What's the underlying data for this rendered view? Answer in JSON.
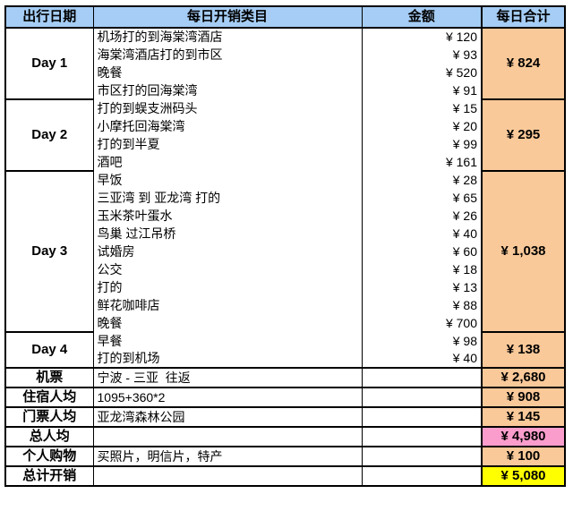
{
  "colors": {
    "header_bg": "#A5CDF5",
    "orange": "#FAC999",
    "pink": "#FB9DCC",
    "yellow": "#FFFF00",
    "border": "#000000",
    "text": "#000000"
  },
  "table": {
    "columns": [
      "出行日期",
      "每日开销类目",
      "金额",
      "每日合计"
    ],
    "day_groups": [
      {
        "day": "Day 1",
        "total": "¥ 824",
        "items": [
          {
            "desc": "机场打的到海棠湾酒店",
            "amount": "¥ 120"
          },
          {
            "desc": "海棠湾酒店打的到市区",
            "amount": "¥ 93"
          },
          {
            "desc": "晚餐",
            "amount": "¥ 520"
          },
          {
            "desc": "市区打的回海棠湾",
            "amount": "¥ 91"
          }
        ]
      },
      {
        "day": "Day 2",
        "total": "¥ 295",
        "items": [
          {
            "desc": "打的到蜈支洲码头",
            "amount": "¥ 15"
          },
          {
            "desc": "小摩托回海棠湾",
            "amount": "¥ 20"
          },
          {
            "desc": "打的到半夏",
            "amount": "¥ 99"
          },
          {
            "desc": "酒吧",
            "amount": "¥ 161"
          }
        ]
      },
      {
        "day": "Day 3",
        "total": "¥ 1,038",
        "items": [
          {
            "desc": "早饭",
            "amount": "¥ 28"
          },
          {
            "desc": "三亚湾 到 亚龙湾 打的",
            "amount": "¥ 65"
          },
          {
            "desc": "玉米茶叶蛋水",
            "amount": "¥ 26"
          },
          {
            "desc": "鸟巢 过江吊桥",
            "amount": "¥ 40"
          },
          {
            "desc": "试婚房",
            "amount": "¥ 60"
          },
          {
            "desc": "公交",
            "amount": "¥ 18"
          },
          {
            "desc": "打的",
            "amount": "¥ 13"
          },
          {
            "desc": "鲜花咖啡店",
            "amount": "¥ 88"
          },
          {
            "desc": "晚餐",
            "amount": "¥ 700"
          }
        ]
      },
      {
        "day": "Day 4",
        "total": "¥ 138",
        "items": [
          {
            "desc": "早餐",
            "amount": "¥ 98"
          },
          {
            "desc": "打的到机场",
            "amount": "¥ 40"
          }
        ]
      }
    ],
    "summary_rows": [
      {
        "label": "机票",
        "desc": "宁波 - 三亚  往返",
        "total": "¥ 2,680",
        "label_style": "plain",
        "total_style": "orange"
      },
      {
        "label": "住宿人均",
        "desc": "1095+360*2",
        "total": "¥ 908",
        "label_style": "plain",
        "total_style": "orange"
      },
      {
        "label": "门票人均",
        "desc": "亚龙湾森林公园",
        "total": "¥ 145",
        "label_style": "plain",
        "total_style": "orange"
      },
      {
        "label": "总人均",
        "desc": "",
        "total": "¥ 4,980",
        "label_style": "pink",
        "total_style": "pink"
      },
      {
        "label": "个人购物",
        "desc": "买照片，明信片，特产",
        "total": "¥ 100",
        "label_style": "plain",
        "total_style": "orange"
      },
      {
        "label": "总计开销",
        "desc": "",
        "total": "¥ 5,080",
        "label_style": "yellow",
        "total_style": "yellow"
      }
    ]
  },
  "chart_data": {
    "type": "table",
    "title": "",
    "columns": [
      "出行日期",
      "每日开销类目",
      "金额",
      "每日合计"
    ],
    "rows": [
      [
        "Day 1",
        "机场打的到海棠湾酒店",
        120,
        824
      ],
      [
        "",
        "海棠湾酒店打的到市区",
        93,
        ""
      ],
      [
        "",
        "晚餐",
        520,
        ""
      ],
      [
        "",
        "市区打的回海棠湾",
        91,
        ""
      ],
      [
        "Day 2",
        "打的到蜈支洲码头",
        15,
        295
      ],
      [
        "",
        "小摩托回海棠湾",
        20,
        ""
      ],
      [
        "",
        "打的到半夏",
        99,
        ""
      ],
      [
        "",
        "酒吧",
        161,
        ""
      ],
      [
        "Day 3",
        "早饭",
        28,
        1038
      ],
      [
        "",
        "三亚湾 到 亚龙湾 打的",
        65,
        ""
      ],
      [
        "",
        "玉米茶叶蛋水",
        26,
        ""
      ],
      [
        "",
        "鸟巢 过江吊桥",
        40,
        ""
      ],
      [
        "",
        "试婚房",
        60,
        ""
      ],
      [
        "",
        "公交",
        18,
        ""
      ],
      [
        "",
        "打的",
        13,
        ""
      ],
      [
        "",
        "鲜花咖啡店",
        88,
        ""
      ],
      [
        "",
        "晚餐",
        700,
        ""
      ],
      [
        "Day 4",
        "早餐",
        98,
        138
      ],
      [
        "",
        "打的到机场",
        40,
        ""
      ],
      [
        "机票",
        "宁波 - 三亚  往返",
        "",
        2680
      ],
      [
        "住宿人均",
        "1095+360*2",
        "",
        908
      ],
      [
        "门票人均",
        "亚龙湾森林公园",
        "",
        145
      ],
      [
        "总人均",
        "",
        "",
        4980
      ],
      [
        "个人购物",
        "买照片，明信片，特产",
        "",
        100
      ],
      [
        "总计开销",
        "",
        "",
        5080
      ]
    ]
  }
}
